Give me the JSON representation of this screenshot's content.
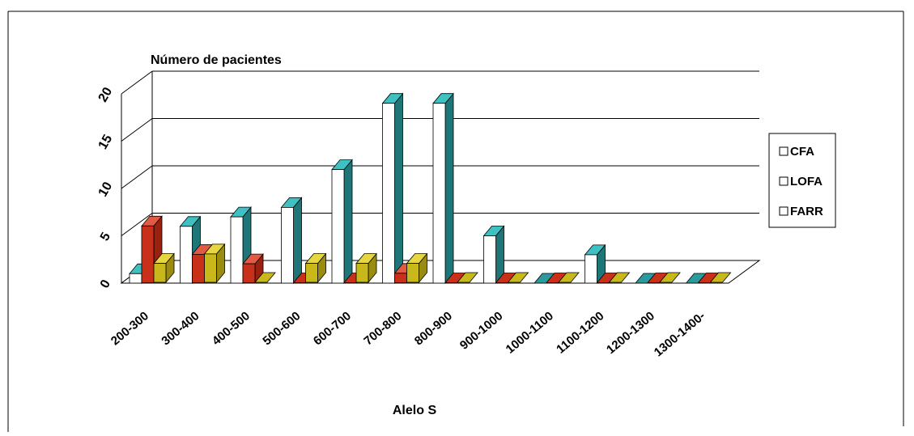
{
  "chart_data": {
    "type": "bar",
    "title": "Número de pacientes",
    "xlabel": "Alelo S",
    "ylabel": "",
    "ylim": [
      0,
      20
    ],
    "yticks": [
      "0",
      "5",
      "10",
      "15",
      "20"
    ],
    "grid": true,
    "legend_position": "right",
    "categories": [
      "200-300",
      "300-400",
      "400-500",
      "500-600",
      "600-700",
      "700-800",
      "800-900",
      "900-1000",
      "1000-1100",
      "1100-1200",
      "1200-1300",
      "1300-1400-"
    ],
    "series": [
      {
        "name": "CFA",
        "values": [
          1,
          6,
          7,
          8,
          12,
          19,
          19,
          5,
          0,
          3,
          0,
          0
        ]
      },
      {
        "name": "LOFA",
        "values": [
          6,
          3,
          2,
          0,
          0,
          1,
          0,
          0,
          0,
          0,
          0,
          0
        ]
      },
      {
        "name": "FARR",
        "values": [
          2,
          3,
          0,
          2,
          2,
          2,
          0,
          0,
          0,
          0,
          0,
          0
        ]
      }
    ],
    "colors": {
      "teal": "#2a9a9c",
      "teal_top": "#3fc0c2",
      "teal_side": "#1e7678",
      "red": "#c8301a",
      "red_top": "#e05a44",
      "red_side": "#9a2010",
      "yellow": "#c8b81a",
      "yellow_top": "#e6d640",
      "yellow_side": "#9a8c10",
      "white": "#ffffff",
      "gridline": "#000000"
    }
  }
}
